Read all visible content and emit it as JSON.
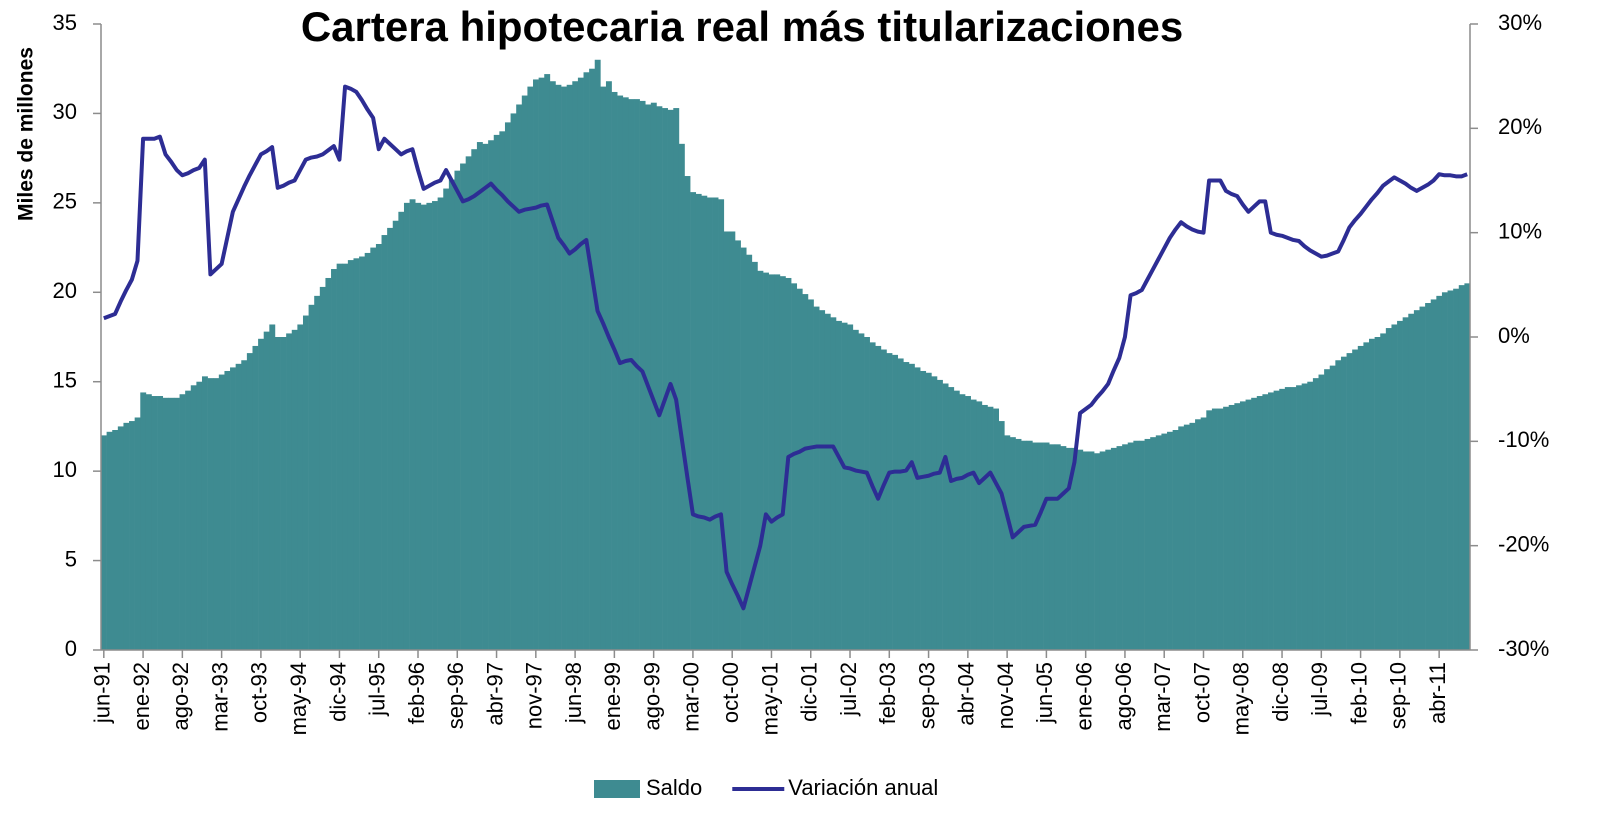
{
  "chart_data": {
    "type": "combo",
    "title": "Cartera hipotecaria real más titularizaciones",
    "ylabel": "Miles de millones",
    "legend": "bottom",
    "categories": [
      "jun-91",
      null,
      null,
      null,
      null,
      null,
      null,
      "ene-92",
      null,
      null,
      null,
      null,
      null,
      null,
      "ago-92",
      null,
      null,
      null,
      null,
      null,
      null,
      "mar-93",
      null,
      null,
      null,
      null,
      null,
      null,
      "oct-93",
      null,
      null,
      null,
      null,
      null,
      null,
      "may-94",
      null,
      null,
      null,
      null,
      null,
      null,
      "dic-94",
      null,
      null,
      null,
      null,
      null,
      null,
      "jul-95",
      null,
      null,
      null,
      null,
      null,
      null,
      "feb-96",
      null,
      null,
      null,
      null,
      null,
      null,
      "sep-96",
      null,
      null,
      null,
      null,
      null,
      null,
      "abr-97",
      null,
      null,
      null,
      null,
      null,
      null,
      "nov-97",
      null,
      null,
      null,
      null,
      null,
      null,
      "jun-98",
      null,
      null,
      null,
      null,
      null,
      null,
      "ene-99",
      null,
      null,
      null,
      null,
      null,
      null,
      "ago-99",
      null,
      null,
      null,
      null,
      null,
      null,
      "mar-00",
      null,
      null,
      null,
      null,
      null,
      null,
      "oct-00",
      null,
      null,
      null,
      null,
      null,
      null,
      "may-01",
      null,
      null,
      null,
      null,
      null,
      null,
      "dic-01",
      null,
      null,
      null,
      null,
      null,
      null,
      "jul-02",
      null,
      null,
      null,
      null,
      null,
      null,
      "feb-03",
      null,
      null,
      null,
      null,
      null,
      null,
      "sep-03",
      null,
      null,
      null,
      null,
      null,
      null,
      "abr-04",
      null,
      null,
      null,
      null,
      null,
      null,
      "nov-04",
      null,
      null,
      null,
      null,
      null,
      null,
      "jun-05",
      null,
      null,
      null,
      null,
      null,
      null,
      "ene-06",
      null,
      null,
      null,
      null,
      null,
      null,
      "ago-06",
      null,
      null,
      null,
      null,
      null,
      null,
      "mar-07",
      null,
      null,
      null,
      null,
      null,
      null,
      "oct-07",
      null,
      null,
      null,
      null,
      null,
      null,
      "may-08",
      null,
      null,
      null,
      null,
      null,
      null,
      "dic-08",
      null,
      null,
      null,
      null,
      null,
      null,
      "jul-09",
      null,
      null,
      null,
      null,
      null,
      null,
      "feb-10",
      null,
      null,
      null,
      null,
      null,
      null,
      "sep-10",
      null,
      null,
      null,
      null,
      null,
      null,
      "abr-11",
      null,
      null,
      null,
      null,
      null
    ],
    "series": [
      {
        "name": "Saldo",
        "type": "bar",
        "color": "#3e8b91",
        "values": [
          12.0,
          12.2,
          12.3,
          12.5,
          12.7,
          12.8,
          13.0,
          14.4,
          14.3,
          14.2,
          14.2,
          14.1,
          14.1,
          14.1,
          14.3,
          14.5,
          14.8,
          15.0,
          15.3,
          15.2,
          15.2,
          15.4,
          15.6,
          15.8,
          16.0,
          16.2,
          16.6,
          17.0,
          17.4,
          17.8,
          18.2,
          17.5,
          17.5,
          17.7,
          17.9,
          18.2,
          18.7,
          19.3,
          19.8,
          20.3,
          20.8,
          21.3,
          21.6,
          21.6,
          21.8,
          21.9,
          22.0,
          22.2,
          22.5,
          22.7,
          23.2,
          23.6,
          24.0,
          24.5,
          25.0,
          25.2,
          25.0,
          24.9,
          25.0,
          25.1,
          25.3,
          25.8,
          26.3,
          26.8,
          27.2,
          27.6,
          28.0,
          28.4,
          28.3,
          28.5,
          28.8,
          29.0,
          29.5,
          30.0,
          30.5,
          31.0,
          31.5,
          31.9,
          32.0,
          32.2,
          31.8,
          31.6,
          31.5,
          31.6,
          31.8,
          32.0,
          32.3,
          32.5,
          33.0,
          31.5,
          31.8,
          31.2,
          31.0,
          30.9,
          30.8,
          30.8,
          30.7,
          30.5,
          30.6,
          30.4,
          30.3,
          30.2,
          30.3,
          28.3,
          26.5,
          25.6,
          25.5,
          25.4,
          25.3,
          25.3,
          25.2,
          23.4,
          23.4,
          22.9,
          22.5,
          22.1,
          21.7,
          21.2,
          21.1,
          21.0,
          21.0,
          20.9,
          20.8,
          20.5,
          20.2,
          19.9,
          19.6,
          19.2,
          19.0,
          18.8,
          18.6,
          18.4,
          18.3,
          18.2,
          17.9,
          17.7,
          17.5,
          17.2,
          17.0,
          16.8,
          16.6,
          16.5,
          16.3,
          16.1,
          16.0,
          15.8,
          15.6,
          15.5,
          15.3,
          15.1,
          14.9,
          14.7,
          14.5,
          14.3,
          14.2,
          14.0,
          13.9,
          13.7,
          13.6,
          13.5,
          12.8,
          12.0,
          11.9,
          11.8,
          11.7,
          11.7,
          11.6,
          11.6,
          11.6,
          11.5,
          11.5,
          11.4,
          11.3,
          11.3,
          11.2,
          11.1,
          11.1,
          11.0,
          11.1,
          11.2,
          11.3,
          11.4,
          11.5,
          11.6,
          11.7,
          11.7,
          11.8,
          11.9,
          12.0,
          12.1,
          12.2,
          12.3,
          12.5,
          12.6,
          12.7,
          12.9,
          13.0,
          13.4,
          13.5,
          13.5,
          13.6,
          13.7,
          13.8,
          13.9,
          14.0,
          14.1,
          14.2,
          14.3,
          14.4,
          14.5,
          14.6,
          14.7,
          14.7,
          14.8,
          14.9,
          15.0,
          15.2,
          15.4,
          15.7,
          15.9,
          16.2,
          16.4,
          16.6,
          16.8,
          17.0,
          17.2,
          17.4,
          17.5,
          17.7,
          18.0,
          18.2,
          18.4,
          18.6,
          18.8,
          19.0,
          19.2,
          19.4,
          19.6,
          19.8,
          20.0,
          20.1,
          20.2,
          20.4,
          20.5
        ]
      },
      {
        "name": "Variación anual",
        "type": "line",
        "axis": "y2",
        "color": "#2d2d94",
        "values": [
          1.8,
          2.0,
          2.2,
          3.4,
          4.5,
          5.5,
          7.3,
          19.0,
          19.0,
          19.0,
          19.2,
          17.5,
          16.8,
          16.0,
          15.5,
          15.7,
          16.0,
          16.2,
          17.0,
          6.0,
          6.5,
          7.0,
          9.5,
          12.0,
          13.2,
          14.4,
          15.5,
          16.5,
          17.5,
          17.8,
          18.2,
          14.3,
          14.5,
          14.8,
          15.0,
          16.0,
          17.0,
          17.2,
          17.3,
          17.5,
          17.9,
          18.3,
          17.0,
          24.0,
          23.8,
          23.5,
          22.7,
          21.8,
          21.0,
          18.0,
          19.0,
          18.5,
          18.0,
          17.5,
          17.8,
          18.0,
          16.0,
          14.2,
          14.5,
          14.8,
          15.0,
          16.0,
          15.0,
          14.0,
          13.0,
          13.2,
          13.5,
          13.9,
          14.3,
          14.7,
          14.1,
          13.6,
          13.0,
          12.5,
          12.0,
          12.2,
          12.3,
          12.4,
          12.6,
          12.7,
          11.1,
          9.5,
          8.8,
          8.0,
          8.4,
          8.9,
          9.3,
          5.9,
          2.5,
          1.3,
          0.0,
          -1.2,
          -2.5,
          -2.3,
          -2.2,
          -2.8,
          -3.3,
          -4.7,
          -6.1,
          -7.5,
          -6.0,
          -4.5,
          -6.0,
          -9.7,
          -13.4,
          -17.0,
          -17.2,
          -17.3,
          -17.5,
          -17.2,
          -17.0,
          -22.5,
          -23.7,
          -24.8,
          -26.0,
          -24.0,
          -22.0,
          -20.0,
          -17.0,
          -17.7,
          -17.3,
          -17.0,
          -11.5,
          -11.2,
          -11.0,
          -10.7,
          -10.6,
          -10.5,
          -10.5,
          -10.5,
          -10.5,
          -11.5,
          -12.5,
          -12.6,
          -12.8,
          -12.9,
          -13.0,
          -14.3,
          -15.5,
          -14.2,
          -13.0,
          -12.9,
          -12.9,
          -12.8,
          -12.0,
          -13.5,
          -13.4,
          -13.3,
          -13.1,
          -13.0,
          -11.5,
          -13.8,
          -13.6,
          -13.5,
          -13.2,
          -13.0,
          -14.0,
          -13.5,
          -13.0,
          -14.0,
          -15.0,
          -17.1,
          -19.2,
          -18.7,
          -18.2,
          -18.1,
          -18.0,
          -16.8,
          -15.5,
          -15.5,
          -15.5,
          -15.0,
          -14.5,
          -12.0,
          -7.3,
          -6.9,
          -6.5,
          -5.8,
          -5.2,
          -4.5,
          -3.2,
          -2.0,
          0.0,
          4.0,
          4.2,
          4.5,
          5.5,
          6.5,
          7.5,
          8.5,
          9.5,
          10.3,
          11.0,
          10.6,
          10.3,
          10.1,
          10.0,
          15.0,
          15.0,
          15.0,
          14.0,
          13.7,
          13.5,
          12.7,
          12.0,
          12.5,
          13.0,
          13.0,
          10.0,
          9.8,
          9.7,
          9.5,
          9.3,
          9.2,
          8.7,
          8.3,
          8.0,
          7.7,
          7.8,
          8.0,
          8.2,
          9.3,
          10.5,
          11.2,
          11.8,
          12.5,
          13.2,
          13.8,
          14.5,
          14.9,
          15.3,
          15.0,
          14.7,
          14.3,
          14.0,
          14.3,
          14.6,
          15.0,
          15.6,
          15.5,
          15.5,
          15.4,
          15.4,
          15.6
        ]
      }
    ],
    "ylim": [
      0,
      35
    ],
    "yticks": [
      0,
      5,
      10,
      15,
      20,
      25,
      30,
      35
    ],
    "y2lim": [
      -30,
      30
    ],
    "y2ticks": [
      {
        "value": -30,
        "label": "-30%"
      },
      {
        "value": -20,
        "label": "-20%"
      },
      {
        "value": -10,
        "label": "-10%"
      },
      {
        "value": 0,
        "label": "0%"
      },
      {
        "value": 10,
        "label": "10%"
      },
      {
        "value": 20,
        "label": "20%"
      },
      {
        "value": 30,
        "label": "30%"
      }
    ],
    "grid": false
  }
}
